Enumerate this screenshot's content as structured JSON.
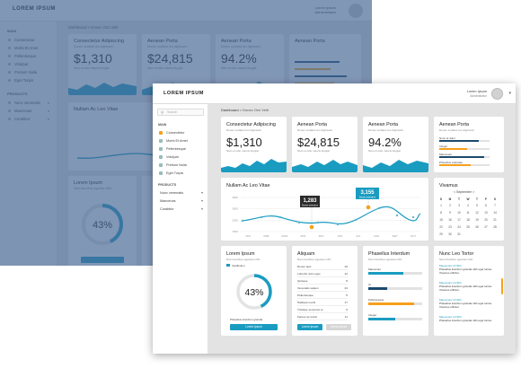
{
  "brand": "LOREM IPSUM",
  "user": {
    "name": "Lorem Ipsum",
    "role": "Administrator"
  },
  "search_placeholder": "Search",
  "sidebar": {
    "section_main": "MAIN",
    "items": [
      {
        "label": "Consectetur",
        "icon": "dashboard-icon",
        "active": true
      },
      {
        "label": "Morbi Et Amet",
        "icon": "grid-icon",
        "active": false
      },
      {
        "label": "Pellentesque",
        "icon": "chart-icon",
        "active": false
      },
      {
        "label": "Volutpat",
        "icon": "doc-icon",
        "active": false
      },
      {
        "label": "Pretium Nulla",
        "icon": "mail-icon",
        "active": false
      },
      {
        "label": "Eget Turpis",
        "icon": "user-icon",
        "active": false
      }
    ],
    "section_products": "PRODUCTS",
    "products": [
      {
        "label": "Nunc venenatis"
      },
      {
        "label": "Maecenas"
      },
      {
        "label": "Curabitur"
      }
    ]
  },
  "breadcrumb": {
    "root": "Dashboard",
    "sep": ">",
    "current": "Donec Orci Velit"
  },
  "stats": [
    {
      "title": "Consectetur Adipiscing",
      "subtitle": "Donec sodales leo dignissim",
      "value": "$1,310",
      "meta": "Nam et odio mauris feugiat"
    },
    {
      "title": "Aenean Porta",
      "subtitle": "Donec sodales leo dignissim",
      "value": "$24,815",
      "meta": "Nam et odio mauris feugiat"
    },
    {
      "title": "Aenean Porta",
      "subtitle": "Donec sodales leo dignissim",
      "value": "94.2%",
      "meta": "Nam et odio mauris feugiat"
    }
  ],
  "bars_card": {
    "title": "Aenean Porta",
    "subtitle": "Donec sodales leo dignissim",
    "items": [
      {
        "label": "Nunc et dolor",
        "value": 0.78,
        "color": "#1b4a6e"
      },
      {
        "label": "Integer",
        "value": 0.55,
        "color": "#f6a01a"
      },
      {
        "label": "Maecenas",
        "value": 0.9,
        "color": "#1b4a6e"
      },
      {
        "label": "Phasellus vulputate",
        "value": 0.62,
        "color": "#f6a01a"
      }
    ]
  },
  "line_card": {
    "title": "Nullam Ac Leo Vitae",
    "callout_high": {
      "value": "3,155",
      "label": "Donec interdum"
    },
    "callout_low": {
      "value": "1,283",
      "label": "Donec interdum"
    },
    "y_ticks": [
      "4500",
      "3000",
      "2000",
      "1500"
    ],
    "x_ticks": [
      "JAN",
      "FEB",
      "MAR",
      "APR",
      "MAY",
      "JUN",
      "JUL",
      "AUG",
      "SEP",
      "OCT"
    ]
  },
  "calendar": {
    "title": "Vivamus",
    "month": "< September >",
    "weekdays": [
      "S",
      "M",
      "T",
      "W",
      "T",
      "F",
      "S"
    ],
    "days": [
      "1",
      "2",
      "3",
      "4",
      "5",
      "6",
      "7",
      "8",
      "9",
      "10",
      "11",
      "12",
      "13",
      "14",
      "15",
      "16",
      "17",
      "18",
      "19",
      "20",
      "21",
      "22",
      "23",
      "24",
      "25",
      "26",
      "27",
      "28",
      "29",
      "30",
      "31"
    ]
  },
  "donut_card": {
    "title": "Lorem Ipsum",
    "subtitle": "Nam faucibus egestas nibh",
    "legend": "Vestibulum",
    "value": "43%",
    "percent": 43,
    "caption": "Phasellus interdum gravida",
    "button": "Lorem Ipsum"
  },
  "list_card": {
    "title": "Aliquam",
    "subtitle": "Nam faucibus egestas nibh",
    "rows": [
      {
        "label": "Donec quis",
        "value": "10"
      },
      {
        "label": "Lobortis nunc eget",
        "value": "12"
      },
      {
        "label": "Quisque",
        "value": "8"
      },
      {
        "label": "Venenatis sapien",
        "value": "24"
      },
      {
        "label": "Pellentesque",
        "value": "5"
      },
      {
        "label": "Habitant morbi",
        "value": "17"
      },
      {
        "label": "Tristique senectus et",
        "value": "9"
      },
      {
        "label": "Fames ac turpis",
        "value": "11"
      }
    ],
    "btn_primary": "Lorem Ipsum",
    "btn_secondary": "Lorem Ipsum"
  },
  "progress_card": {
    "title": "Phasellus Interdum",
    "subtitle": "Nam faucibus egestas nibh",
    "items": [
      {
        "label": "Maecenas",
        "value": 0.65,
        "color": "#1a9cc1"
      },
      {
        "label": "Ut",
        "value": 0.35,
        "color": "#1b4a6e"
      },
      {
        "label": "Pellentesque",
        "value": 0.85,
        "color": "#f6a01a"
      },
      {
        "label": "Integer",
        "value": 0.5,
        "color": "#1a9cc1"
      }
    ]
  },
  "feed_card": {
    "title": "Nunc Leo Tortor",
    "subtitle": "Nam faucibus egestas nibh",
    "messages": [
      {
        "name": "Maecenas Ut Nibh",
        "text": "Phasellus interdum gravida nibh eget luctus. Vivamus efficitur."
      },
      {
        "name": "Maecenas Ut Nibh",
        "text": "Phasellus interdum gravida nibh eget luctus. Vivamus efficitur."
      },
      {
        "name": "Maecenas Ut Nibh",
        "text": "Phasellus interdum gravida nibh eget luctus. Vivamus efficitur."
      },
      {
        "name": "Maecenas Ut Nibh",
        "text": "Phasellus interdum gravida nibh eget luctus."
      }
    ]
  },
  "colors": {
    "accent": "#1a9cc1",
    "orange": "#f6a01a",
    "navy": "#1b4a6e",
    "wash": "#46669a"
  }
}
